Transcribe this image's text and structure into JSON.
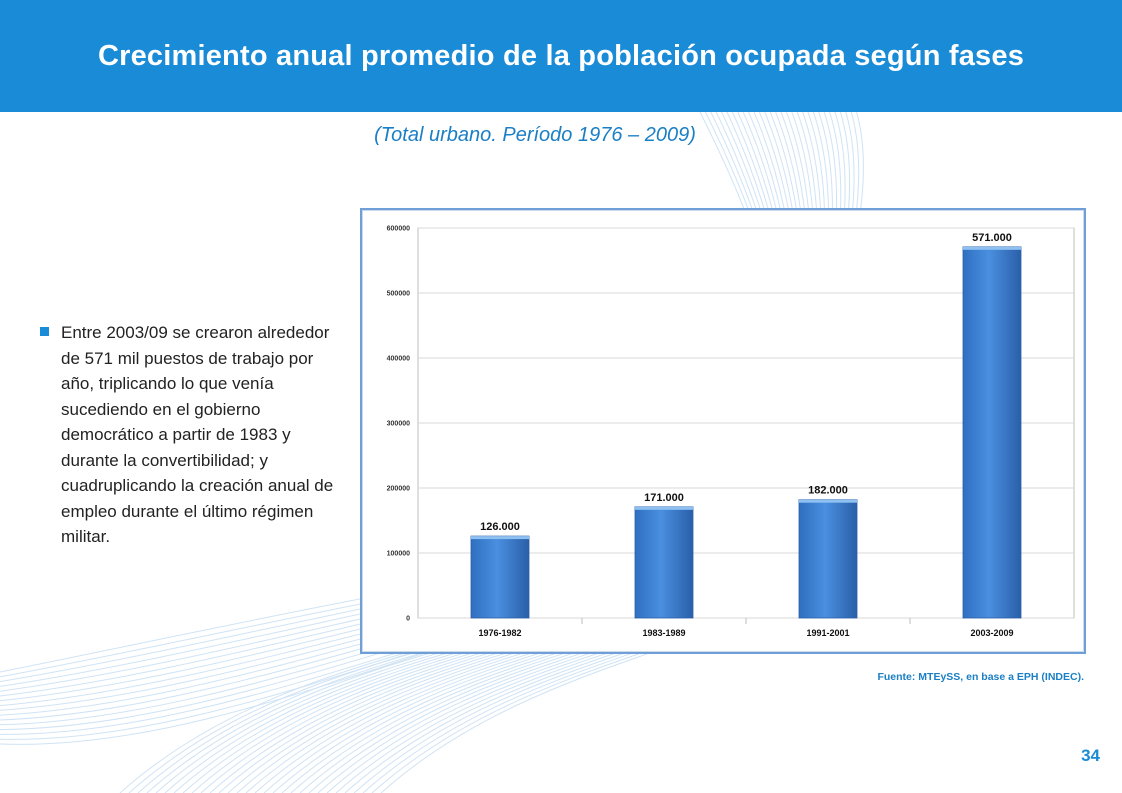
{
  "slide": {
    "title": "Crecimiento anual promedio de la población ocupada según fases",
    "subtitle": "(Total urbano.  Período 1976 – 2009)",
    "bullet_text": "Entre 2003/09 se crearon alrededor de 571 mil puestos de trabajo por año, triplicando lo que venía sucediendo en el gobierno democrático a partir de 1983 y durante la convertibilidad;  y cuadruplicando la creación anual de empleo durante el último régimen militar.",
    "source": "Fuente: MTEySS, en base a EPH (INDEC).",
    "page_number": "34"
  },
  "colors": {
    "header": "#1a8bd6",
    "bar": "#3a7fd0",
    "bar_dark": "#2a5fa8",
    "accent_text": "#1a7fc4"
  },
  "chart_data": {
    "type": "bar",
    "title": "",
    "xlabel": "",
    "ylabel": "",
    "categories": [
      "1976-1982",
      "1983-1989",
      "1991-2001",
      "2003-2009"
    ],
    "values": [
      126000,
      171000,
      182000,
      571000
    ],
    "data_labels": [
      "126.000",
      "171.000",
      "182.000",
      "571.000"
    ],
    "ylim": [
      0,
      600000
    ],
    "yticks": [
      0,
      100000,
      200000,
      300000,
      400000,
      500000,
      600000
    ],
    "ytick_labels": [
      "0",
      "100000",
      "200000",
      "300000",
      "400000",
      "500000",
      "600000"
    ],
    "grid": true,
    "legend": false
  }
}
